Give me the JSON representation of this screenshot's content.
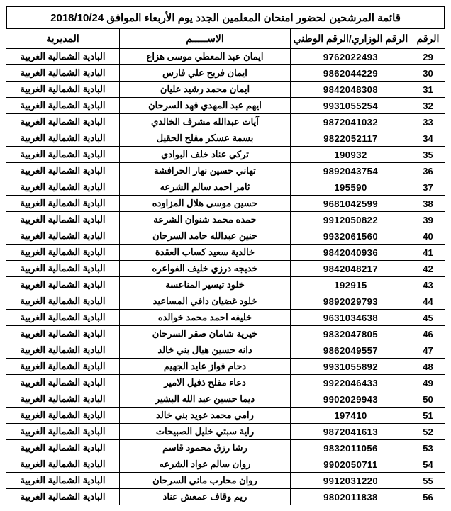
{
  "title": "قائمة المرشحين لحضور امتحان المعلمين الجدد يوم الأربعاء الموافق 2018/10/24",
  "columns": {
    "num": "الرقم",
    "id": "الرقم الوزاري/الرقم الوطني",
    "name": "الاســـــم",
    "directorate": "المديرية"
  },
  "directorate_label": "البادية الشمالية الغربية",
  "rows": [
    {
      "n": 29,
      "id": "9762022493",
      "name": "ايمان عبد المعطي موسى هزاع"
    },
    {
      "n": 30,
      "id": "9862044229",
      "name": "ايمان فريح علي فارس"
    },
    {
      "n": 31,
      "id": "9842048308",
      "name": "ايمان محمد رشيد عليان"
    },
    {
      "n": 32,
      "id": "9931055254",
      "name": "ايهم عبد المهدي فهد السرحان"
    },
    {
      "n": 33,
      "id": "9872041032",
      "name": "آيات عبدالله مشرف الخالدي"
    },
    {
      "n": 34,
      "id": "9822052117",
      "name": "بسمة عسكر مفلح الحقيل"
    },
    {
      "n": 35,
      "id": "190932",
      "name": "تركي عناد خلف البوادي"
    },
    {
      "n": 36,
      "id": "9892043754",
      "name": "تهاني حسين نهار الحرافشة"
    },
    {
      "n": 37,
      "id": "195590",
      "name": "ثامر احمد سالم الشرعه"
    },
    {
      "n": 38,
      "id": "9681042599",
      "name": "حسين موسى هلال المزاوده"
    },
    {
      "n": 39,
      "id": "9912050822",
      "name": "حمده محمد شنوان الشرعة"
    },
    {
      "n": 40,
      "id": "9932061560",
      "name": "حنين عبدالله حامد السرحان"
    },
    {
      "n": 41,
      "id": "9842040936",
      "name": "خالدية سعيد كساب العقدة"
    },
    {
      "n": 42,
      "id": "9842048217",
      "name": "خديجه درزي خليف الفواعره"
    },
    {
      "n": 43,
      "id": "192915",
      "name": "خلود تيسير المناعسة"
    },
    {
      "n": 44,
      "id": "9892029793",
      "name": "خلود غضيان دافي المساعيد"
    },
    {
      "n": 45,
      "id": "9631034638",
      "name": "خليفه احمد محمد خوالده"
    },
    {
      "n": 46,
      "id": "9832047805",
      "name": "خيرية شامان صقر  السرحان"
    },
    {
      "n": 47,
      "id": "9862049557",
      "name": "دانه حسين هيال بني خالد"
    },
    {
      "n": 48,
      "id": "9931055892",
      "name": "دحام فواز عايد الجهيم"
    },
    {
      "n": 49,
      "id": "9922046433",
      "name": "دعاء مفلح ذفيل الامير"
    },
    {
      "n": 50,
      "id": "9902029943",
      "name": "ديما حسين عبد الله البشير"
    },
    {
      "n": 51,
      "id": "197410",
      "name": "رامي محمد عويد بني خالد"
    },
    {
      "n": 52,
      "id": "9872041613",
      "name": "راية سبتي خليل الصبيحات"
    },
    {
      "n": 53,
      "id": "9832011056",
      "name": "رشا رزق محمود قاسم"
    },
    {
      "n": 54,
      "id": "9902050711",
      "name": "روان سالم عواد الشرعه"
    },
    {
      "n": 55,
      "id": "9912031220",
      "name": "روان محارب ماني السرحان"
    },
    {
      "n": 56,
      "id": "9802011838",
      "name": "ريم وقاف عمعش عناد"
    }
  ]
}
